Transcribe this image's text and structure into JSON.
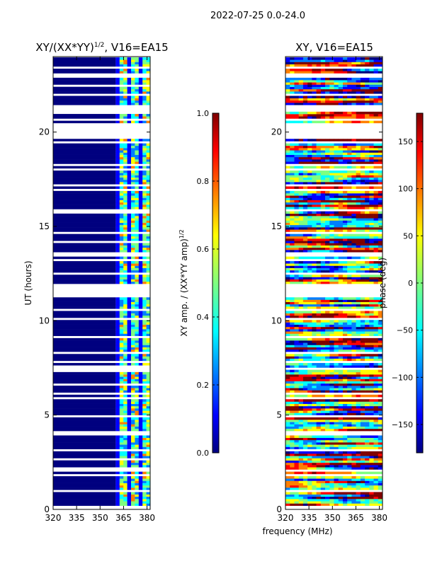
{
  "figure": {
    "suptitle": "2022-07-25 0.0-24.0",
    "xlabel": "frequency (MHz)"
  },
  "chart_data": [
    {
      "type": "heatmap",
      "title_text": "XY/(XX*YY)",
      "title_exponent": "1/2",
      "title_suffix": ", V16=EA15",
      "ylabel": "UT (hours)",
      "xlim": [
        320,
        382
      ],
      "ylim": [
        0,
        24
      ],
      "xticks": [
        320,
        335,
        350,
        365,
        380
      ],
      "yticks": [
        0,
        5,
        10,
        15,
        20
      ],
      "colorbar": {
        "label_text": "XY amp. / (XX*YY amp)",
        "label_exponent": "1/2",
        "range": [
          0.0,
          1.0
        ],
        "ticks": [
          "0.0",
          "0.2",
          "0.4",
          "0.6",
          "0.8",
          "1.0"
        ],
        "colormap": "jet"
      },
      "data_gaps_hours": [
        [
          11.2,
          11.9
        ],
        [
          19.6,
          20.4
        ]
      ],
      "active_band_mhz": [
        360,
        382
      ],
      "colormap_colors": [
        "#00007f",
        "#0000ff",
        "#007fff",
        "#00ffff",
        "#7fff7f",
        "#ffff00",
        "#ff7f00",
        "#ff0000",
        "#7f0000"
      ]
    },
    {
      "type": "heatmap",
      "title_text": "XY, V16=EA15",
      "xlim": [
        320,
        382
      ],
      "ylim": [
        0,
        24
      ],
      "xticks": [
        320,
        335,
        350,
        365,
        380
      ],
      "yticks": [
        0,
        5,
        10,
        15,
        20
      ],
      "colorbar": {
        "label_text": "phase (deg)",
        "range": [
          -180,
          180
        ],
        "ticks": [
          "150",
          "100",
          "50",
          "0",
          "−50",
          "−100",
          "−150"
        ],
        "colormap": "jet"
      },
      "data_gaps_hours": [
        [
          11.2,
          11.9
        ],
        [
          19.6,
          20.4
        ]
      ]
    }
  ]
}
